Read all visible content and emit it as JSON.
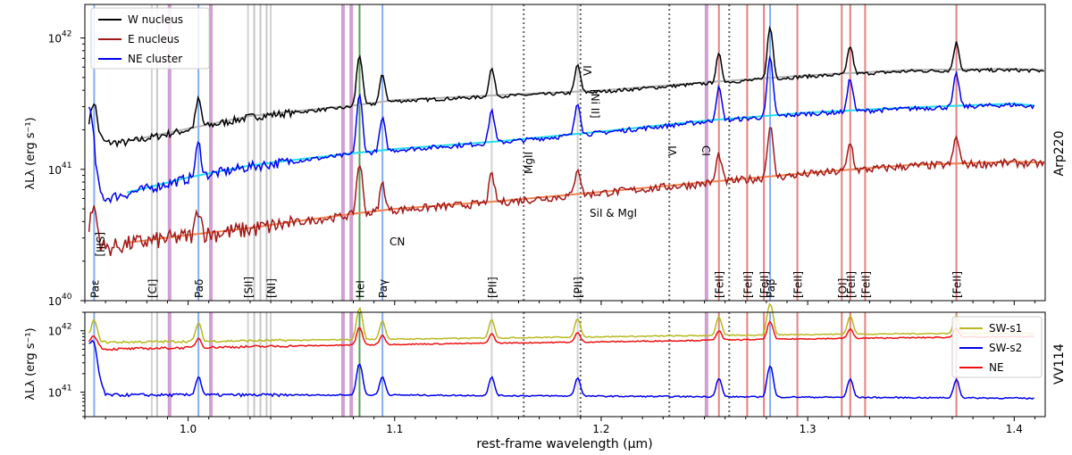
{
  "chart_data": [
    {
      "type": "line",
      "panel": "top",
      "side_label": "Arp220",
      "ylabel": "λLλ (erg s⁻¹)",
      "yscale": "log",
      "ylim": [
        1e+40,
        1.8e+42
      ],
      "xlim": [
        0.95,
        1.415
      ],
      "yticks": [
        {
          "value": 1e+40,
          "label": "10",
          "sup": "40"
        },
        {
          "value": 1e+41,
          "label": "10",
          "sup": "41"
        },
        {
          "value": 1e+42,
          "label": "10",
          "sup": "42"
        }
      ],
      "legend": {
        "position": "top-left",
        "entries": [
          "W nucleus",
          "E nucleus",
          "NE cluster"
        ]
      },
      "series": [
        {
          "name": "W nucleus",
          "color": "#000000",
          "model_color": "#b4b4b4",
          "x": [
            0.952,
            0.96,
            0.97,
            1.0,
            1.03,
            1.05,
            1.08,
            1.1,
            1.15,
            1.2,
            1.25,
            1.3,
            1.35,
            1.4,
            1.415
          ],
          "values": [
            2.2e+41,
            1.6e+41,
            1.6e+41,
            2e+41,
            2.5e+41,
            2.7e+41,
            3e+41,
            3.3e+41,
            3.6e+41,
            3.9e+41,
            4.5e+41,
            5.1e+41,
            5.6e+41,
            5.7e+41,
            5.6e+41
          ]
        },
        {
          "name": "NE cluster",
          "color": "#0000ee",
          "model_color": "#22ddee",
          "x": [
            0.952,
            0.955,
            0.96,
            0.97,
            1.0,
            1.03,
            1.05,
            1.08,
            1.1,
            1.15,
            1.2,
            1.25,
            1.3,
            1.35,
            1.4,
            1.41
          ],
          "values": [
            3e+41,
            7e+40,
            6e+40,
            6.5e+40,
            8.5e+40,
            1.05e+41,
            1.15e+41,
            1.3e+41,
            1.4e+41,
            1.6e+41,
            1.9e+41,
            2.3e+41,
            2.65e+41,
            2.9e+41,
            3.1e+41,
            3e+41
          ]
        },
        {
          "name": "E nucleus",
          "color": "#a01818",
          "model_color": "#f08050",
          "x": [
            0.952,
            0.96,
            0.97,
            1.0,
            1.03,
            1.05,
            1.08,
            1.1,
            1.15,
            1.2,
            1.25,
            1.3,
            1.35,
            1.4,
            1.415
          ],
          "values": [
            3.5e+40,
            2.5e+40,
            2.7e+40,
            3.1e+40,
            3.5e+40,
            3.9e+40,
            4.5e+40,
            4.9e+40,
            5.6e+40,
            6.6e+40,
            7.8e+40,
            9.2e+40,
            1.06e+41,
            1.12e+41,
            1.1e+41
          ]
        }
      ],
      "annotations": [
        "[SIII]",
        "MgII",
        "[Ni II]",
        "VI",
        "VI",
        "CI",
        "SiI & MgI",
        "CN"
      ]
    },
    {
      "type": "line",
      "panel": "bottom",
      "side_label": "VV114",
      "ylabel": "λLλ (erg s⁻¹)",
      "xlabel": "rest-frame wavelength (μm)",
      "yscale": "log",
      "ylim": [
        4e+40,
        2e+42
      ],
      "xlim": [
        0.95,
        1.415
      ],
      "xticks": [
        1.0,
        1.1,
        1.2,
        1.3,
        1.4
      ],
      "xticklabels": [
        "1.0",
        "1.1",
        "1.2",
        "1.3",
        "1.4"
      ],
      "yticks": [
        {
          "value": 1e+41,
          "label": "10",
          "sup": "41"
        },
        {
          "value": 1e+42,
          "label": "10",
          "sup": "42"
        }
      ],
      "legend": {
        "position": "top-right",
        "entries": [
          "SW-s1",
          "SW-s2",
          "NE"
        ]
      },
      "series": [
        {
          "name": "SW-s1",
          "color": "#b8b820",
          "x": [
            0.952,
            0.96,
            1.0,
            1.1,
            1.2,
            1.3,
            1.4,
            1.41
          ],
          "values": [
            8e+41,
            6.5e+41,
            6.7e+41,
            7.3e+41,
            8e+41,
            8.7e+41,
            9.2e+41,
            9e+41
          ]
        },
        {
          "name": "SW-s2",
          "color": "#0000ee",
          "x": [
            0.952,
            0.96,
            1.0,
            1.1,
            1.2,
            1.3,
            1.4,
            1.41
          ],
          "values": [
            5.5e+41,
            9e+40,
            9e+40,
            9e+40,
            8.6e+40,
            8.3e+40,
            8e+40,
            7.9e+40
          ]
        },
        {
          "name": "NE",
          "color": "#ee1010",
          "x": [
            0.952,
            0.96,
            1.0,
            1.1,
            1.2,
            1.3,
            1.4,
            1.41
          ],
          "values": [
            6.5e+41,
            5e+41,
            5.3e+41,
            6e+41,
            6.6e+41,
            7.4e+41,
            8e+41,
            8e+41
          ]
        }
      ]
    }
  ],
  "lines": [
    {
      "x": 0.9545,
      "label": "Paε",
      "color": "#6699ee",
      "label_color": "#0000cc"
    },
    {
      "x": 0.9824,
      "label": "[CI]",
      "color": "#c8c8c8",
      "label_color": "#000000"
    },
    {
      "x": 1.005,
      "label": "Paδ",
      "color": "#6699ee",
      "label_color": "#0000cc"
    },
    {
      "x": 1.029,
      "label": "[SII]",
      "color": "#c8c8c8",
      "label_color": "#000000"
    },
    {
      "x": 1.04,
      "label": "[NI]",
      "color": "#c8c8c8",
      "label_color": "#000000"
    },
    {
      "x": 1.083,
      "label": "HeI",
      "color": "#2a8a2a",
      "label_color": "#2a8a2a"
    },
    {
      "x": 1.0941,
      "label": "Paγ",
      "color": "#6699ee",
      "label_color": "#0000cc"
    },
    {
      "x": 1.147,
      "label": "[PII]",
      "color": "#c8c8c8",
      "label_color": "#000000"
    },
    {
      "x": 1.1886,
      "label": "[PII]",
      "color": "#c8c8c8",
      "label_color": "#000000"
    },
    {
      "x": 1.257,
      "label": "[FeII]",
      "color": "#e06060",
      "label_color": "#000000"
    },
    {
      "x": 1.2707,
      "label": "[FeII]",
      "color": "#e06060",
      "label_color": "#000000"
    },
    {
      "x": 1.2788,
      "label": "[FeII]",
      "color": "#e06060",
      "label_color": "#000000"
    },
    {
      "x": 1.2818,
      "label": "Paβ",
      "color": "#6699ee",
      "label_color": "#0000cc"
    },
    {
      "x": 1.295,
      "label": "[FeII]",
      "color": "#e06060",
      "label_color": "#000000"
    },
    {
      "x": 1.3165,
      "label": "[OI]",
      "color": "#e06060",
      "label_color": "#000000"
    },
    {
      "x": 1.3206,
      "label": "[FeII]",
      "color": "#e06060",
      "label_color": "#000000"
    },
    {
      "x": 1.3278,
      "label": "[FeII]",
      "color": "#e06060",
      "label_color": "#000000"
    },
    {
      "x": 1.372,
      "label": "[FeII]",
      "color": "#e06060",
      "label_color": "#000000"
    }
  ],
  "extra_gray_lines": [
    0.985,
    1.032,
    1.035,
    1.038,
    1.032
  ],
  "purple_bands": [
    0.991,
    1.011,
    1.075,
    1.079,
    1.251
  ],
  "dotted_lines": [
    1.1625,
    1.19,
    1.233,
    1.262
  ],
  "colors": {
    "purple_band": "#b060b0",
    "dotted": "#666666"
  }
}
